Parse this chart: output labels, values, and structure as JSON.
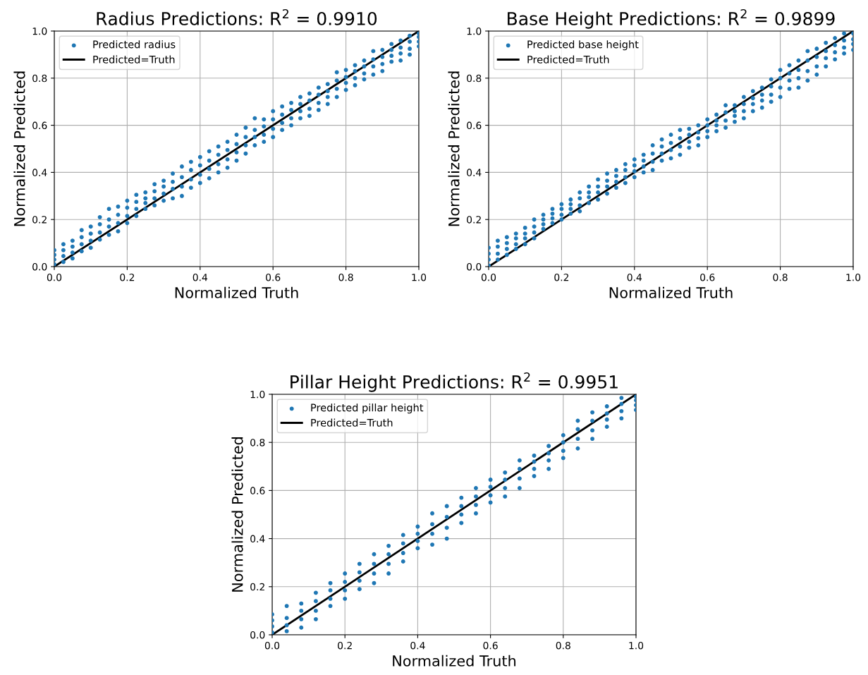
{
  "chart_data": [
    {
      "type": "scatter",
      "title": "Radius Predictions: R$^{2}$ = 0.9910",
      "xlabel": "Normalized Truth",
      "ylabel": "Normalized Predicted",
      "xlim": [
        0,
        1
      ],
      "ylim": [
        0,
        1
      ],
      "xticks": [
        {
          "value": 0,
          "label": "0.0"
        },
        {
          "value": 0.2,
          "label": "0.2"
        },
        {
          "value": 0.4,
          "label": "0.4"
        },
        {
          "value": 0.6,
          "label": "0.6"
        },
        {
          "value": 0.8,
          "label": "0.8"
        },
        {
          "value": 1,
          "label": "1.0"
        }
      ],
      "yticks": [
        {
          "value": 0,
          "label": "0.0"
        },
        {
          "value": 0.2,
          "label": "0.2"
        },
        {
          "value": 0.4,
          "label": "0.4"
        },
        {
          "value": 0.6,
          "label": "0.6"
        },
        {
          "value": 0.8,
          "label": "0.8"
        },
        {
          "value": 1,
          "label": "1.0"
        }
      ],
      "grid": true,
      "legend": "top left",
      "series": [
        {
          "name": "Predicted radius",
          "color": "#1f77b4",
          "marker": "circle",
          "x": [
            0,
            0,
            0,
            0,
            0.025,
            0.025,
            0.025,
            0.025,
            0.05,
            0.05,
            0.05,
            0.05,
            0.075,
            0.075,
            0.075,
            0.075,
            0.1,
            0.1,
            0.1,
            0.1,
            0.125,
            0.125,
            0.125,
            0.125,
            0.15,
            0.15,
            0.15,
            0.15,
            0.175,
            0.175,
            0.175,
            0.175,
            0.2,
            0.2,
            0.2,
            0.2,
            0.225,
            0.225,
            0.225,
            0.225,
            0.25,
            0.25,
            0.25,
            0.25,
            0.275,
            0.275,
            0.275,
            0.275,
            0.3,
            0.3,
            0.3,
            0.3,
            0.325,
            0.325,
            0.325,
            0.325,
            0.35,
            0.35,
            0.35,
            0.35,
            0.375,
            0.375,
            0.375,
            0.375,
            0.4,
            0.4,
            0.4,
            0.4,
            0.425,
            0.425,
            0.425,
            0.425,
            0.45,
            0.45,
            0.45,
            0.45,
            0.475,
            0.475,
            0.475,
            0.475,
            0.5,
            0.5,
            0.5,
            0.5,
            0.525,
            0.525,
            0.525,
            0.525,
            0.55,
            0.55,
            0.55,
            0.55,
            0.575,
            0.575,
            0.575,
            0.575,
            0.6,
            0.6,
            0.6,
            0.6,
            0.625,
            0.625,
            0.625,
            0.625,
            0.65,
            0.65,
            0.65,
            0.65,
            0.675,
            0.675,
            0.675,
            0.675,
            0.7,
            0.7,
            0.7,
            0.7,
            0.725,
            0.725,
            0.725,
            0.725,
            0.75,
            0.75,
            0.75,
            0.75,
            0.775,
            0.775,
            0.775,
            0.775,
            0.8,
            0.8,
            0.8,
            0.8,
            0.825,
            0.825,
            0.825,
            0.825,
            0.85,
            0.85,
            0.85,
            0.85,
            0.875,
            0.875,
            0.875,
            0.875,
            0.9,
            0.9,
            0.9,
            0.9,
            0.925,
            0.925,
            0.925,
            0.925,
            0.95,
            0.95,
            0.95,
            0.95,
            0.975,
            0.975,
            0.975,
            0.975,
            1,
            1,
            1,
            1
          ],
          "values": [
            0.01,
            0.03,
            0.05,
            0.07,
            0.02,
            0.045,
            0.07,
            0.095,
            0.035,
            0.06,
            0.085,
            0.11,
            0.065,
            0.095,
            0.125,
            0.155,
            0.08,
            0.11,
            0.14,
            0.17,
            0.115,
            0.145,
            0.18,
            0.21,
            0.135,
            0.17,
            0.2,
            0.245,
            0.15,
            0.185,
            0.22,
            0.255,
            0.185,
            0.215,
            0.25,
            0.28,
            0.215,
            0.245,
            0.275,
            0.305,
            0.245,
            0.27,
            0.29,
            0.315,
            0.26,
            0.29,
            0.32,
            0.35,
            0.28,
            0.31,
            0.34,
            0.365,
            0.29,
            0.33,
            0.36,
            0.395,
            0.3,
            0.34,
            0.38,
            0.425,
            0.335,
            0.37,
            0.41,
            0.445,
            0.355,
            0.39,
            0.43,
            0.465,
            0.375,
            0.415,
            0.45,
            0.49,
            0.4,
            0.435,
            0.475,
            0.51,
            0.42,
            0.455,
            0.495,
            0.53,
            0.45,
            0.485,
            0.52,
            0.56,
            0.48,
            0.515,
            0.55,
            0.59,
            0.515,
            0.55,
            0.58,
            0.63,
            0.53,
            0.56,
            0.595,
            0.625,
            0.55,
            0.585,
            0.625,
            0.66,
            0.58,
            0.61,
            0.645,
            0.68,
            0.6,
            0.63,
            0.665,
            0.695,
            0.63,
            0.66,
            0.69,
            0.72,
            0.64,
            0.67,
            0.705,
            0.735,
            0.665,
            0.695,
            0.73,
            0.76,
            0.69,
            0.72,
            0.745,
            0.775,
            0.72,
            0.755,
            0.79,
            0.825,
            0.75,
            0.78,
            0.805,
            0.835,
            0.77,
            0.8,
            0.83,
            0.855,
            0.795,
            0.82,
            0.85,
            0.875,
            0.815,
            0.85,
            0.88,
            0.915,
            0.83,
            0.86,
            0.89,
            0.92,
            0.87,
            0.895,
            0.92,
            0.945,
            0.875,
            0.905,
            0.93,
            0.96,
            0.9,
            0.925,
            0.955,
            0.98,
            0.935,
            0.955,
            0.975,
            0.99
          ]
        },
        {
          "type": "line",
          "name": "Predicted=Truth",
          "color": "#000000",
          "x": [
            0,
            1
          ],
          "values": [
            0,
            1
          ]
        }
      ]
    },
    {
      "type": "scatter",
      "title": "Base Height Predictions: R$^{2}$ = 0.9899",
      "xlabel": "Normalized Truth",
      "ylabel": "Normalized Predicted",
      "xlim": [
        0,
        1
      ],
      "ylim": [
        0,
        1
      ],
      "xticks": [
        {
          "value": 0,
          "label": "0.0"
        },
        {
          "value": 0.2,
          "label": "0.2"
        },
        {
          "value": 0.4,
          "label": "0.4"
        },
        {
          "value": 0.6,
          "label": "0.6"
        },
        {
          "value": 0.8,
          "label": "0.8"
        },
        {
          "value": 1,
          "label": "1.0"
        }
      ],
      "yticks": [
        {
          "value": 0,
          "label": "0.0"
        },
        {
          "value": 0.2,
          "label": "0.2"
        },
        {
          "value": 0.4,
          "label": "0.4"
        },
        {
          "value": 0.6,
          "label": "0.6"
        },
        {
          "value": 0.8,
          "label": "0.8"
        },
        {
          "value": 1,
          "label": "1.0"
        }
      ],
      "grid": true,
      "legend": "top left",
      "series": [
        {
          "name": "Predicted base height",
          "color": "#1f77b4",
          "marker": "circle",
          "x": [
            0,
            0,
            0,
            0,
            0.025,
            0.025,
            0.025,
            0.025,
            0.05,
            0.05,
            0.05,
            0.05,
            0.075,
            0.075,
            0.075,
            0.075,
            0.1,
            0.1,
            0.1,
            0.1,
            0.125,
            0.125,
            0.125,
            0.125,
            0.15,
            0.15,
            0.15,
            0.15,
            0.175,
            0.175,
            0.175,
            0.175,
            0.2,
            0.2,
            0.2,
            0.2,
            0.225,
            0.225,
            0.225,
            0.225,
            0.25,
            0.25,
            0.25,
            0.25,
            0.275,
            0.275,
            0.275,
            0.275,
            0.3,
            0.3,
            0.3,
            0.3,
            0.325,
            0.325,
            0.325,
            0.325,
            0.35,
            0.35,
            0.35,
            0.35,
            0.375,
            0.375,
            0.375,
            0.375,
            0.4,
            0.4,
            0.4,
            0.4,
            0.425,
            0.425,
            0.425,
            0.425,
            0.45,
            0.45,
            0.45,
            0.45,
            0.475,
            0.475,
            0.475,
            0.475,
            0.5,
            0.5,
            0.5,
            0.5,
            0.525,
            0.525,
            0.525,
            0.525,
            0.55,
            0.55,
            0.55,
            0.55,
            0.575,
            0.575,
            0.575,
            0.575,
            0.6,
            0.6,
            0.6,
            0.6,
            0.625,
            0.625,
            0.625,
            0.625,
            0.65,
            0.65,
            0.65,
            0.65,
            0.675,
            0.675,
            0.675,
            0.675,
            0.7,
            0.7,
            0.7,
            0.7,
            0.725,
            0.725,
            0.725,
            0.725,
            0.75,
            0.75,
            0.75,
            0.75,
            0.775,
            0.775,
            0.775,
            0.775,
            0.8,
            0.8,
            0.8,
            0.8,
            0.825,
            0.825,
            0.825,
            0.825,
            0.85,
            0.85,
            0.85,
            0.85,
            0.875,
            0.875,
            0.875,
            0.875,
            0.9,
            0.9,
            0.9,
            0.9,
            0.925,
            0.925,
            0.925,
            0.925,
            0.95,
            0.95,
            0.95,
            0.95,
            0.975,
            0.975,
            0.975,
            0.975,
            1,
            1,
            1,
            1
          ],
          "values": [
            0.005,
            0.03,
            0.055,
            0.08,
            0.03,
            0.055,
            0.085,
            0.11,
            0.05,
            0.075,
            0.1,
            0.125,
            0.075,
            0.095,
            0.12,
            0.14,
            0.095,
            0.12,
            0.14,
            0.165,
            0.12,
            0.145,
            0.17,
            0.2,
            0.16,
            0.18,
            0.2,
            0.22,
            0.185,
            0.205,
            0.225,
            0.245,
            0.2,
            0.22,
            0.245,
            0.265,
            0.225,
            0.245,
            0.265,
            0.285,
            0.235,
            0.26,
            0.29,
            0.315,
            0.27,
            0.295,
            0.315,
            0.34,
            0.285,
            0.315,
            0.34,
            0.37,
            0.31,
            0.34,
            0.365,
            0.395,
            0.335,
            0.36,
            0.385,
            0.41,
            0.355,
            0.38,
            0.41,
            0.435,
            0.38,
            0.405,
            0.43,
            0.455,
            0.4,
            0.425,
            0.45,
            0.475,
            0.41,
            0.445,
            0.48,
            0.515,
            0.45,
            0.48,
            0.51,
            0.54,
            0.46,
            0.495,
            0.525,
            0.56,
            0.475,
            0.51,
            0.545,
            0.58,
            0.505,
            0.53,
            0.56,
            0.585,
            0.515,
            0.545,
            0.57,
            0.6,
            0.55,
            0.575,
            0.6,
            0.625,
            0.575,
            0.6,
            0.62,
            0.645,
            0.59,
            0.62,
            0.655,
            0.685,
            0.615,
            0.64,
            0.66,
            0.685,
            0.63,
            0.66,
            0.69,
            0.72,
            0.66,
            0.69,
            0.715,
            0.745,
            0.675,
            0.705,
            0.73,
            0.76,
            0.7,
            0.73,
            0.765,
            0.795,
            0.72,
            0.76,
            0.8,
            0.835,
            0.755,
            0.79,
            0.82,
            0.855,
            0.76,
            0.8,
            0.835,
            0.875,
            0.79,
            0.83,
            0.875,
            0.915,
            0.815,
            0.85,
            0.89,
            0.925,
            0.85,
            0.885,
            0.915,
            0.95,
            0.88,
            0.91,
            0.94,
            0.97,
            0.905,
            0.93,
            0.96,
            0.99,
            0.92,
            0.945,
            0.965,
            0.99
          ]
        },
        {
          "type": "line",
          "name": "Predicted=Truth",
          "color": "#000000",
          "x": [
            0,
            1
          ],
          "values": [
            0,
            1
          ]
        }
      ]
    },
    {
      "type": "scatter",
      "title": "Pillar Height Predictions: R$^{2}$ = 0.9951",
      "xlabel": "Normalized Truth",
      "ylabel": "Normalized Predicted",
      "xlim": [
        0,
        1
      ],
      "ylim": [
        0,
        1
      ],
      "xticks": [
        {
          "value": 0,
          "label": "0.0"
        },
        {
          "value": 0.2,
          "label": "0.2"
        },
        {
          "value": 0.4,
          "label": "0.4"
        },
        {
          "value": 0.6,
          "label": "0.6"
        },
        {
          "value": 0.8,
          "label": "0.8"
        },
        {
          "value": 1,
          "label": "1.0"
        }
      ],
      "yticks": [
        {
          "value": 0,
          "label": "0.0"
        },
        {
          "value": 0.2,
          "label": "0.2"
        },
        {
          "value": 0.4,
          "label": "0.4"
        },
        {
          "value": 0.6,
          "label": "0.6"
        },
        {
          "value": 0.8,
          "label": "0.8"
        },
        {
          "value": 1,
          "label": "1.0"
        }
      ],
      "grid": true,
      "legend": "top left",
      "series": [
        {
          "name": "Predicted pillar height",
          "color": "#1f77b4",
          "marker": "circle",
          "x": [
            0,
            0,
            0,
            0,
            0.04,
            0.04,
            0.04,
            0.04,
            0.08,
            0.08,
            0.08,
            0.08,
            0.12,
            0.12,
            0.12,
            0.12,
            0.16,
            0.16,
            0.16,
            0.16,
            0.2,
            0.2,
            0.2,
            0.2,
            0.24,
            0.24,
            0.24,
            0.24,
            0.28,
            0.28,
            0.28,
            0.28,
            0.32,
            0.32,
            0.32,
            0.32,
            0.36,
            0.36,
            0.36,
            0.36,
            0.4,
            0.4,
            0.4,
            0.4,
            0.44,
            0.44,
            0.44,
            0.44,
            0.48,
            0.48,
            0.48,
            0.48,
            0.52,
            0.52,
            0.52,
            0.52,
            0.56,
            0.56,
            0.56,
            0.56,
            0.6,
            0.6,
            0.6,
            0.6,
            0.64,
            0.64,
            0.64,
            0.64,
            0.68,
            0.68,
            0.68,
            0.68,
            0.72,
            0.72,
            0.72,
            0.72,
            0.76,
            0.76,
            0.76,
            0.76,
            0.8,
            0.8,
            0.8,
            0.8,
            0.84,
            0.84,
            0.84,
            0.84,
            0.88,
            0.88,
            0.88,
            0.88,
            0.92,
            0.92,
            0.92,
            0.92,
            0.96,
            0.96,
            0.96,
            0.96,
            1,
            1,
            1,
            1
          ],
          "values": [
            0.01,
            0.035,
            0.06,
            0.085,
            0.015,
            0.04,
            0.07,
            0.12,
            0.03,
            0.065,
            0.1,
            0.13,
            0.065,
            0.1,
            0.14,
            0.175,
            0.12,
            0.15,
            0.185,
            0.215,
            0.15,
            0.185,
            0.22,
            0.255,
            0.19,
            0.225,
            0.26,
            0.295,
            0.215,
            0.255,
            0.295,
            0.335,
            0.255,
            0.295,
            0.335,
            0.37,
            0.305,
            0.34,
            0.38,
            0.415,
            0.36,
            0.39,
            0.42,
            0.45,
            0.375,
            0.42,
            0.46,
            0.505,
            0.4,
            0.445,
            0.49,
            0.535,
            0.465,
            0.5,
            0.535,
            0.57,
            0.505,
            0.54,
            0.575,
            0.61,
            0.55,
            0.58,
            0.615,
            0.645,
            0.575,
            0.61,
            0.645,
            0.675,
            0.61,
            0.65,
            0.69,
            0.725,
            0.66,
            0.69,
            0.72,
            0.745,
            0.69,
            0.725,
            0.755,
            0.785,
            0.735,
            0.765,
            0.8,
            0.83,
            0.775,
            0.815,
            0.855,
            0.89,
            0.815,
            0.85,
            0.89,
            0.925,
            0.865,
            0.895,
            0.92,
            0.95,
            0.9,
            0.93,
            0.96,
            0.985,
            0.935,
            0.955,
            0.975,
            0.99
          ]
        },
        {
          "type": "line",
          "name": "Predicted=Truth",
          "color": "#000000",
          "x": [
            0,
            1
          ],
          "values": [
            0,
            1
          ]
        }
      ]
    }
  ]
}
